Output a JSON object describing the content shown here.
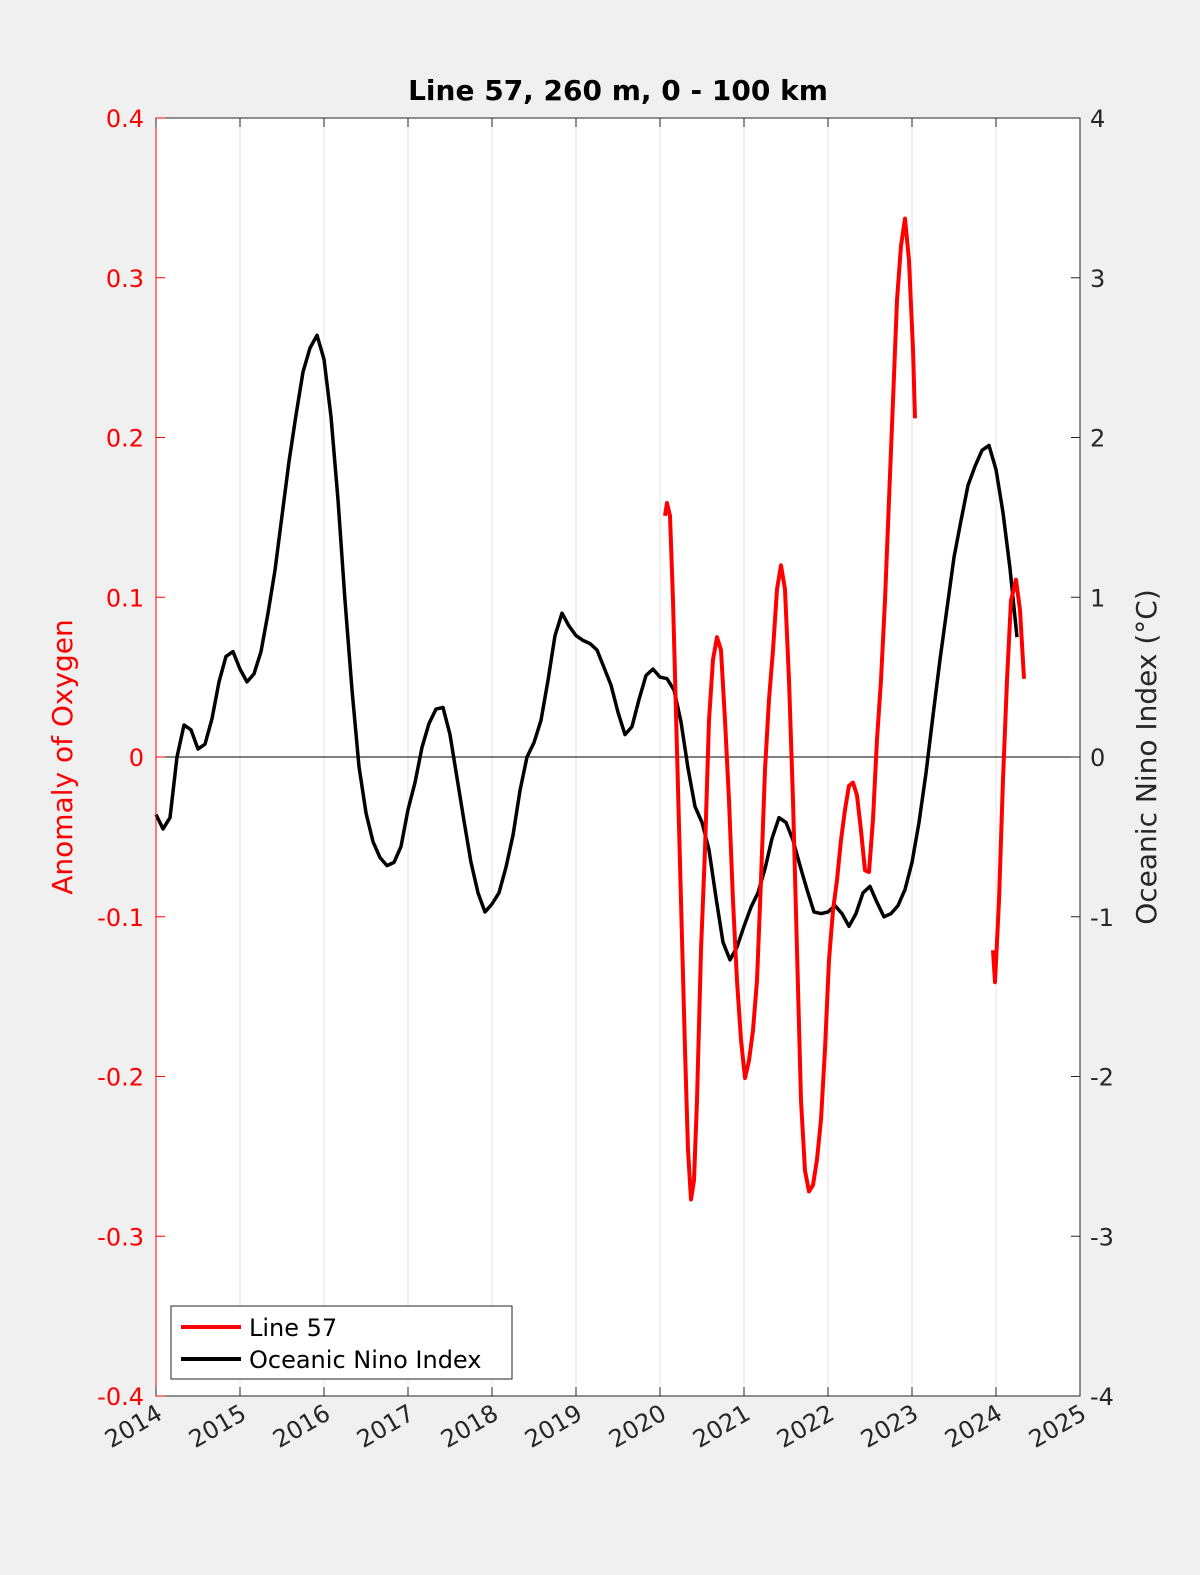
{
  "chart_data": {
    "type": "line",
    "title": "Line 57, 260 m, 0 - 100 km",
    "xlabel": "",
    "ylabel_left": "Anomaly of Oxygen",
    "ylabel_right": "Oceanic Nino Index (°C)",
    "xlim": [
      2014,
      2025
    ],
    "ylim_left": [
      -0.4,
      0.4
    ],
    "ylim_right": [
      -4,
      4
    ],
    "x_tick_labels": [
      "2014",
      "2015",
      "2016",
      "2017",
      "2018",
      "2019",
      "2020",
      "2021",
      "2022",
      "2023",
      "2024",
      "2025"
    ],
    "y_left_tick_labels": [
      "0.4",
      "0.3",
      "0.2",
      "0.1",
      "0",
      "-0.1",
      "-0.2",
      "-0.3",
      "-0.4"
    ],
    "y_right_tick_labels": [
      "4",
      "3",
      "2",
      "1",
      "0",
      "-1",
      "-2",
      "-3",
      "-4"
    ],
    "grid": "vertical at year ticks",
    "zero_line": true,
    "legend_position": "bottom-left",
    "colors": {
      "line57": "#ff0000",
      "oni": "#000000",
      "background": "#f0f0f0"
    },
    "series": [
      {
        "name": "Line 57",
        "axis": "left",
        "segments": [
          {
            "x": [
              2020.06,
              2020.083,
              2020.119,
              2020.155,
              2020.202,
              2020.25,
              2020.298,
              2020.333,
              2020.369,
              2020.405,
              2020.44,
              2020.488,
              2020.536,
              2020.583,
              2020.631,
              2020.679,
              2020.726,
              2020.774,
              2020.821,
              2020.869,
              2020.917,
              2020.964,
              2021.012,
              2021.06,
              2021.107,
              2021.155,
              2021.202,
              2021.25,
              2021.298,
              2021.345,
              2021.393,
              2021.44,
              2021.488,
              2021.536,
              2021.583,
              2021.631,
              2021.679,
              2021.726,
              2021.774,
              2021.821,
              2021.869,
              2021.917,
              2021.964,
              2022.012,
              2022.06,
              2022.107,
              2022.155,
              2022.202,
              2022.25,
              2022.298,
              2022.345,
              2022.393,
              2022.44,
              2022.488,
              2022.536,
              2022.583,
              2022.631,
              2022.679,
              2022.726,
              2022.774,
              2022.821,
              2022.869,
              2022.917,
              2022.964,
              2023.012,
              2023.036
            ],
            "y": [
              0.151,
              0.159,
              0.151,
              0.098,
              0.004,
              -0.09,
              -0.183,
              -0.246,
              -0.277,
              -0.265,
              -0.215,
              -0.121,
              -0.058,
              0.023,
              0.061,
              0.075,
              0.067,
              0.023,
              -0.027,
              -0.09,
              -0.14,
              -0.177,
              -0.201,
              -0.19,
              -0.171,
              -0.14,
              -0.077,
              -0.008,
              0.036,
              0.067,
              0.105,
              0.12,
              0.105,
              0.048,
              -0.027,
              -0.121,
              -0.215,
              -0.259,
              -0.272,
              -0.268,
              -0.252,
              -0.227,
              -0.183,
              -0.127,
              -0.096,
              -0.077,
              -0.052,
              -0.033,
              -0.018,
              -0.016,
              -0.024,
              -0.046,
              -0.071,
              -0.072,
              -0.039,
              0.011,
              0.048,
              0.098,
              0.161,
              0.223,
              0.286,
              0.32,
              0.337,
              0.311,
              0.255,
              0.212
            ]
          },
          {
            "x": [
              2023.964,
              2023.988,
              2024.036,
              2024.083,
              2024.131,
              2024.179,
              2024.238,
              2024.286,
              2024.333
            ],
            "y": [
              -0.121,
              -0.141,
              -0.09,
              -0.014,
              0.048,
              0.098,
              0.111,
              0.092,
              0.049
            ]
          }
        ]
      },
      {
        "name": "Oceanic Nino Index",
        "axis": "right",
        "start": "2014-01",
        "step": "month",
        "x": [
          "2014-01",
          "2014-02",
          "2014-03",
          "2014-04",
          "2014-05",
          "2014-06",
          "2014-07",
          "2014-08",
          "2014-09",
          "2014-10",
          "2014-11",
          "2014-12",
          "2015-01",
          "2015-02",
          "2015-03",
          "2015-04",
          "2015-05",
          "2015-06",
          "2015-07",
          "2015-08",
          "2015-09",
          "2015-10",
          "2015-11",
          "2015-12",
          "2016-01",
          "2016-02",
          "2016-03",
          "2016-04",
          "2016-05",
          "2016-06",
          "2016-07",
          "2016-08",
          "2016-09",
          "2016-10",
          "2016-11",
          "2016-12",
          "2017-01",
          "2017-02",
          "2017-03",
          "2017-04",
          "2017-05",
          "2017-06",
          "2017-07",
          "2017-08",
          "2017-09",
          "2017-10",
          "2017-11",
          "2017-12",
          "2018-01",
          "2018-02",
          "2018-03",
          "2018-04",
          "2018-05",
          "2018-06",
          "2018-07",
          "2018-08",
          "2018-09",
          "2018-10",
          "2018-11",
          "2018-12",
          "2019-01",
          "2019-02",
          "2019-03",
          "2019-04",
          "2019-05",
          "2019-06",
          "2019-07",
          "2019-08",
          "2019-09",
          "2019-10",
          "2019-11",
          "2019-12",
          "2020-01",
          "2020-02",
          "2020-03",
          "2020-04",
          "2020-05",
          "2020-06",
          "2020-07",
          "2020-08",
          "2020-09",
          "2020-10",
          "2020-11",
          "2020-12",
          "2021-01",
          "2021-02",
          "2021-03",
          "2021-04",
          "2021-05",
          "2021-06",
          "2021-07",
          "2021-08",
          "2021-09",
          "2021-10",
          "2021-11",
          "2021-12",
          "2022-01",
          "2022-02",
          "2022-03",
          "2022-04",
          "2022-05",
          "2022-06",
          "2022-07",
          "2022-08",
          "2022-09",
          "2022-10",
          "2022-11",
          "2022-12",
          "2023-01",
          "2023-02",
          "2023-03",
          "2023-04",
          "2023-05",
          "2023-06",
          "2023-07",
          "2023-08",
          "2023-09",
          "2023-10",
          "2023-11",
          "2023-12",
          "2024-01",
          "2024-02",
          "2024-03",
          "2024-04"
        ],
        "y": [
          -0.36,
          -0.45,
          -0.38,
          0.0,
          0.2,
          0.17,
          0.05,
          0.08,
          0.24,
          0.47,
          0.63,
          0.66,
          0.55,
          0.47,
          0.52,
          0.66,
          0.9,
          1.17,
          1.51,
          1.85,
          2.14,
          2.41,
          2.56,
          2.64,
          2.49,
          2.13,
          1.61,
          0.98,
          0.42,
          -0.06,
          -0.35,
          -0.53,
          -0.63,
          -0.68,
          -0.66,
          -0.56,
          -0.33,
          -0.16,
          0.06,
          0.21,
          0.3,
          0.31,
          0.14,
          -0.13,
          -0.4,
          -0.66,
          -0.85,
          -0.97,
          -0.92,
          -0.85,
          -0.69,
          -0.49,
          -0.21,
          0.0,
          0.09,
          0.23,
          0.48,
          0.76,
          0.9,
          0.82,
          0.76,
          0.73,
          0.71,
          0.67,
          0.56,
          0.45,
          0.28,
          0.14,
          0.19,
          0.36,
          0.51,
          0.55,
          0.5,
          0.49,
          0.42,
          0.22,
          -0.07,
          -0.31,
          -0.41,
          -0.58,
          -0.88,
          -1.16,
          -1.27,
          -1.19,
          -1.06,
          -0.94,
          -0.85,
          -0.7,
          -0.51,
          -0.38,
          -0.41,
          -0.52,
          -0.68,
          -0.83,
          -0.97,
          -0.98,
          -0.97,
          -0.93,
          -0.98,
          -1.06,
          -0.98,
          -0.85,
          -0.81,
          -0.91,
          -1.0,
          -0.98,
          -0.93,
          -0.83,
          -0.66,
          -0.41,
          -0.1,
          0.26,
          0.61,
          0.93,
          1.25,
          1.48,
          1.7,
          1.82,
          1.92,
          1.95,
          1.8,
          1.53,
          1.18,
          0.75
        ]
      }
    ],
    "legend": [
      "Line 57",
      "Oceanic Nino Index"
    ]
  }
}
